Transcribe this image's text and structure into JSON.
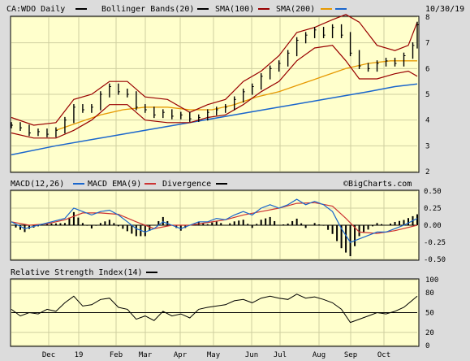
{
  "chart_data": [
    {
      "type": "ohlc",
      "panel": "price",
      "symbol_label": "CA:WDO Daily",
      "date": "10/30/19",
      "legend": [
        {
          "name": "CA:WDO Daily",
          "color": "#000000"
        },
        {
          "name": "Bollinger Bands(20)",
          "color": "#000000"
        },
        {
          "name": "SMA(100)",
          "color": "#990000"
        },
        {
          "name": "SMA(200)",
          "color": "#e69900"
        },
        {
          "name": "",
          "color": "#1a66cc"
        }
      ],
      "ylim": [
        2,
        8
      ],
      "yticks": [
        "2",
        "3",
        "4",
        "5",
        "6",
        "7",
        "8"
      ],
      "xlabels": [
        "Dec",
        "19",
        "Feb",
        "Mar",
        "Apr",
        "May",
        "Jun",
        "Jul",
        "Aug",
        "Sep",
        "Oct"
      ],
      "price_points": [
        [
          0,
          3.8
        ],
        [
          4,
          3.7
        ],
        [
          8,
          3.5
        ],
        [
          12,
          3.55
        ],
        [
          16,
          3.45
        ],
        [
          20,
          3.6
        ],
        [
          24,
          4.0
        ],
        [
          28,
          4.5
        ],
        [
          32,
          4.4
        ],
        [
          36,
          4.5
        ],
        [
          40,
          5.0
        ],
        [
          44,
          5.3
        ],
        [
          48,
          5.1
        ],
        [
          52,
          5.0
        ],
        [
          56,
          4.5
        ],
        [
          60,
          4.4
        ],
        [
          64,
          4.2
        ],
        [
          68,
          4.3
        ],
        [
          72,
          4.15
        ],
        [
          76,
          4.2
        ],
        [
          80,
          4.05
        ],
        [
          84,
          4.1
        ],
        [
          88,
          4.3
        ],
        [
          92,
          4.4
        ],
        [
          96,
          4.5
        ],
        [
          100,
          4.8
        ],
        [
          104,
          5.1
        ],
        [
          108,
          5.3
        ],
        [
          112,
          5.7
        ],
        [
          116,
          6.0
        ],
        [
          120,
          6.2
        ],
        [
          124,
          6.6
        ],
        [
          128,
          7.1
        ],
        [
          132,
          7.3
        ],
        [
          136,
          7.5
        ],
        [
          140,
          7.3
        ],
        [
          144,
          7.6
        ],
        [
          148,
          7.3
        ],
        [
          152,
          6.6
        ],
        [
          156,
          6.1
        ],
        [
          160,
          6.0
        ],
        [
          164,
          6.2
        ],
        [
          168,
          6.3
        ],
        [
          172,
          6.2
        ],
        [
          176,
          6.5
        ],
        [
          180,
          6.9
        ],
        [
          182,
          7.7
        ]
      ],
      "bollinger_upper": [
        [
          0,
          4.1
        ],
        [
          10,
          3.8
        ],
        [
          20,
          3.9
        ],
        [
          28,
          4.8
        ],
        [
          36,
          5.0
        ],
        [
          44,
          5.5
        ],
        [
          52,
          5.5
        ],
        [
          60,
          4.9
        ],
        [
          70,
          4.8
        ],
        [
          80,
          4.3
        ],
        [
          88,
          4.6
        ],
        [
          96,
          4.8
        ],
        [
          104,
          5.5
        ],
        [
          112,
          5.9
        ],
        [
          120,
          6.5
        ],
        [
          128,
          7.4
        ],
        [
          136,
          7.6
        ],
        [
          144,
          7.9
        ],
        [
          150,
          8.1
        ],
        [
          156,
          7.8
        ],
        [
          164,
          6.9
        ],
        [
          172,
          6.7
        ],
        [
          178,
          6.9
        ],
        [
          182,
          7.8
        ]
      ],
      "bollinger_lower": [
        [
          0,
          3.5
        ],
        [
          10,
          3.3
        ],
        [
          20,
          3.3
        ],
        [
          28,
          3.6
        ],
        [
          36,
          4.0
        ],
        [
          44,
          4.6
        ],
        [
          52,
          4.6
        ],
        [
          60,
          4.0
        ],
        [
          70,
          3.9
        ],
        [
          80,
          3.9
        ],
        [
          88,
          4.1
        ],
        [
          96,
          4.2
        ],
        [
          104,
          4.6
        ],
        [
          112,
          5.1
        ],
        [
          120,
          5.5
        ],
        [
          128,
          6.3
        ],
        [
          136,
          6.8
        ],
        [
          144,
          6.9
        ],
        [
          150,
          6.3
        ],
        [
          156,
          5.6
        ],
        [
          164,
          5.6
        ],
        [
          172,
          5.8
        ],
        [
          178,
          5.9
        ],
        [
          182,
          5.7
        ]
      ],
      "sma100": [
        [
          20,
          3.6
        ],
        [
          30,
          3.9
        ],
        [
          40,
          4.2
        ],
        [
          50,
          4.4
        ],
        [
          60,
          4.5
        ],
        [
          70,
          4.5
        ],
        [
          80,
          4.4
        ],
        [
          90,
          4.4
        ],
        [
          100,
          4.6
        ],
        [
          110,
          4.9
        ],
        [
          120,
          5.1
        ],
        [
          130,
          5.4
        ],
        [
          140,
          5.7
        ],
        [
          150,
          6.0
        ],
        [
          160,
          6.2
        ],
        [
          170,
          6.3
        ],
        [
          182,
          6.3
        ]
      ],
      "sma200": [
        [
          0,
          2.65
        ],
        [
          20,
          3.0
        ],
        [
          40,
          3.3
        ],
        [
          60,
          3.6
        ],
        [
          80,
          3.9
        ],
        [
          100,
          4.2
        ],
        [
          120,
          4.5
        ],
        [
          140,
          4.8
        ],
        [
          160,
          5.1
        ],
        [
          172,
          5.3
        ],
        [
          182,
          5.4
        ]
      ]
    },
    {
      "type": "line",
      "panel": "macd",
      "title": "MACD(12,26)",
      "legend": [
        {
          "name": "MACD(12,26)",
          "color": "#1a66cc"
        },
        {
          "name": "MACD EMA(9)",
          "color": "#cc3333"
        },
        {
          "name": "Divergence",
          "color": "#000000"
        }
      ],
      "watermark": "©BigCharts.com",
      "ylim": [
        -0.5,
        0.5
      ],
      "yticks": [
        "0.50",
        "0.25",
        "0.00",
        "-0.25",
        "-0.50"
      ],
      "macd": [
        [
          0,
          0.05
        ],
        [
          6,
          -0.05
        ],
        [
          12,
          0.0
        ],
        [
          18,
          0.05
        ],
        [
          24,
          0.1
        ],
        [
          28,
          0.25
        ],
        [
          32,
          0.2
        ],
        [
          36,
          0.15
        ],
        [
          40,
          0.2
        ],
        [
          44,
          0.22
        ],
        [
          48,
          0.15
        ],
        [
          52,
          0.05
        ],
        [
          56,
          -0.05
        ],
        [
          60,
          -0.1
        ],
        [
          64,
          -0.05
        ],
        [
          68,
          0.05
        ],
        [
          72,
          0.0
        ],
        [
          76,
          -0.05
        ],
        [
          80,
          0.0
        ],
        [
          84,
          0.05
        ],
        [
          88,
          0.05
        ],
        [
          92,
          0.1
        ],
        [
          96,
          0.08
        ],
        [
          100,
          0.15
        ],
        [
          104,
          0.2
        ],
        [
          108,
          0.15
        ],
        [
          112,
          0.25
        ],
        [
          116,
          0.3
        ],
        [
          120,
          0.25
        ],
        [
          124,
          0.3
        ],
        [
          128,
          0.38
        ],
        [
          132,
          0.3
        ],
        [
          136,
          0.35
        ],
        [
          140,
          0.3
        ],
        [
          144,
          0.2
        ],
        [
          148,
          -0.05
        ],
        [
          152,
          -0.25
        ],
        [
          156,
          -0.2
        ],
        [
          160,
          -0.15
        ],
        [
          164,
          -0.1
        ],
        [
          168,
          -0.1
        ],
        [
          172,
          -0.05
        ],
        [
          176,
          0.0
        ],
        [
          182,
          0.1
        ]
      ],
      "signal": [
        [
          0,
          0.05
        ],
        [
          8,
          0.0
        ],
        [
          16,
          0.02
        ],
        [
          24,
          0.08
        ],
        [
          32,
          0.18
        ],
        [
          40,
          0.18
        ],
        [
          48,
          0.16
        ],
        [
          56,
          0.05
        ],
        [
          64,
          -0.05
        ],
        [
          72,
          0.0
        ],
        [
          80,
          0.0
        ],
        [
          88,
          0.04
        ],
        [
          96,
          0.08
        ],
        [
          104,
          0.15
        ],
        [
          112,
          0.2
        ],
        [
          120,
          0.25
        ],
        [
          128,
          0.32
        ],
        [
          136,
          0.33
        ],
        [
          144,
          0.28
        ],
        [
          150,
          0.1
        ],
        [
          156,
          -0.1
        ],
        [
          164,
          -0.12
        ],
        [
          172,
          -0.08
        ],
        [
          182,
          0.0
        ]
      ]
    },
    {
      "type": "line",
      "panel": "rsi",
      "title": "Relative Strength Index(14)",
      "legend": [
        {
          "name": "Relative Strength Index(14)",
          "color": "#000000"
        }
      ],
      "ylim": [
        0,
        100
      ],
      "yticks": [
        "100",
        "80",
        "50",
        "20",
        "0"
      ],
      "reference_line": 50,
      "rsi": [
        [
          0,
          55
        ],
        [
          4,
          45
        ],
        [
          8,
          50
        ],
        [
          12,
          48
        ],
        [
          16,
          55
        ],
        [
          20,
          52
        ],
        [
          24,
          65
        ],
        [
          28,
          75
        ],
        [
          32,
          60
        ],
        [
          36,
          62
        ],
        [
          40,
          70
        ],
        [
          44,
          72
        ],
        [
          48,
          58
        ],
        [
          52,
          55
        ],
        [
          56,
          40
        ],
        [
          60,
          45
        ],
        [
          64,
          38
        ],
        [
          68,
          52
        ],
        [
          72,
          45
        ],
        [
          76,
          48
        ],
        [
          80,
          42
        ],
        [
          84,
          55
        ],
        [
          88,
          58
        ],
        [
          92,
          60
        ],
        [
          96,
          62
        ],
        [
          100,
          68
        ],
        [
          104,
          70
        ],
        [
          108,
          65
        ],
        [
          112,
          72
        ],
        [
          116,
          75
        ],
        [
          120,
          72
        ],
        [
          124,
          70
        ],
        [
          128,
          78
        ],
        [
          132,
          72
        ],
        [
          136,
          74
        ],
        [
          140,
          70
        ],
        [
          144,
          65
        ],
        [
          148,
          55
        ],
        [
          152,
          35
        ],
        [
          156,
          40
        ],
        [
          160,
          45
        ],
        [
          164,
          50
        ],
        [
          168,
          48
        ],
        [
          172,
          52
        ],
        [
          176,
          58
        ],
        [
          182,
          75
        ]
      ]
    }
  ]
}
